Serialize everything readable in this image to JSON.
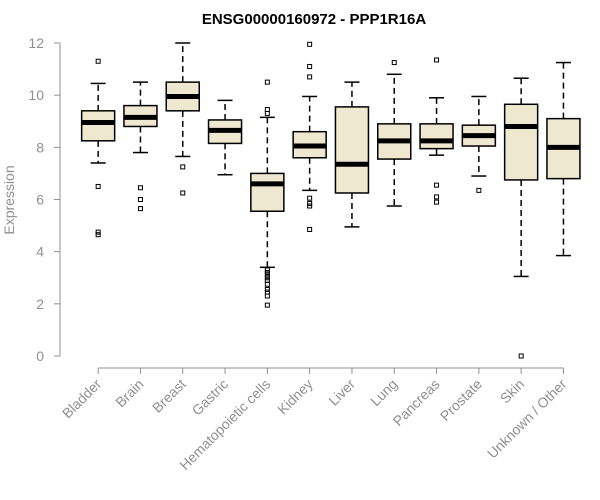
{
  "chart_data": {
    "type": "boxplot",
    "title": "ENSG00000160972 - PPP1R16A",
    "xlabel": "",
    "ylabel": "Expression",
    "ylim": [
      0,
      12
    ],
    "yticks": [
      0,
      2,
      4,
      6,
      8,
      10,
      12
    ],
    "box_fill": "#EFE8D0",
    "grid": false,
    "categories": [
      "Bladder",
      "Brain",
      "Breast",
      "Gastric",
      "Hematopoietic cells",
      "Kidney",
      "Liver",
      "Lung",
      "Pancreas",
      "Prostate",
      "Skin",
      "Unknown / Other"
    ],
    "boxes": [
      {
        "whislo": 7.4,
        "q1": 8.25,
        "med": 8.95,
        "q3": 9.4,
        "whishi": 10.45,
        "fliers": [
          11.3,
          6.5,
          4.75,
          4.65
        ]
      },
      {
        "whislo": 7.8,
        "q1": 8.8,
        "med": 9.15,
        "q3": 9.6,
        "whishi": 10.5,
        "fliers": [
          6.45,
          6.0,
          5.65
        ]
      },
      {
        "whislo": 7.65,
        "q1": 9.4,
        "med": 9.95,
        "q3": 10.5,
        "whishi": 12.0,
        "fliers": [
          7.25,
          6.25
        ]
      },
      {
        "whislo": 6.95,
        "q1": 8.15,
        "med": 8.65,
        "q3": 9.05,
        "whishi": 9.8,
        "fliers": []
      },
      {
        "whislo": 3.4,
        "q1": 5.55,
        "med": 6.6,
        "q3": 7.0,
        "whishi": 9.15,
        "fliers": [
          10.5,
          9.45,
          9.3,
          3.3,
          3.2,
          3.1,
          3.0,
          2.9,
          2.75,
          2.55,
          2.45,
          2.3,
          1.95
        ]
      },
      {
        "whislo": 6.35,
        "q1": 7.6,
        "med": 8.05,
        "q3": 8.6,
        "whishi": 9.95,
        "fliers": [
          11.95,
          11.1,
          10.7,
          6.05,
          5.85,
          5.75,
          4.85
        ]
      },
      {
        "whislo": 4.95,
        "q1": 6.25,
        "med": 7.35,
        "q3": 9.55,
        "whishi": 10.5,
        "fliers": []
      },
      {
        "whislo": 5.75,
        "q1": 7.55,
        "med": 8.25,
        "q3": 8.9,
        "whishi": 10.8,
        "fliers": [
          11.25
        ]
      },
      {
        "whislo": 7.7,
        "q1": 7.95,
        "med": 8.25,
        "q3": 8.9,
        "whishi": 9.9,
        "fliers": [
          11.35,
          6.55,
          6.1,
          5.9
        ]
      },
      {
        "whislo": 6.9,
        "q1": 8.05,
        "med": 8.45,
        "q3": 8.85,
        "whishi": 9.95,
        "fliers": [
          6.35
        ]
      },
      {
        "whislo": 3.05,
        "q1": 6.75,
        "med": 8.8,
        "q3": 9.65,
        "whishi": 10.65,
        "fliers": [
          0.0
        ]
      },
      {
        "whislo": 3.85,
        "q1": 6.8,
        "med": 8.0,
        "q3": 9.1,
        "whishi": 11.25,
        "fliers": []
      }
    ]
  }
}
